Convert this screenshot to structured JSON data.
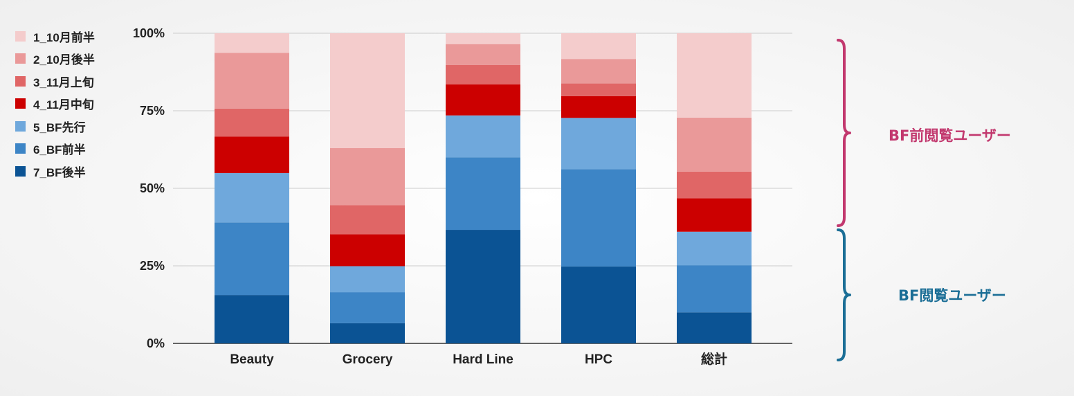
{
  "chart_data": {
    "type": "bar",
    "stacked": true,
    "normalized": true,
    "categories": [
      "Beauty",
      "Grocery",
      "Hard Line",
      "HPC",
      "総計"
    ],
    "series": [
      {
        "name": "7_BF後半",
        "color": "#0b5394",
        "values": [
          15.6,
          6.5,
          36.6,
          24.8,
          10.0
        ]
      },
      {
        "name": "6_BF前半",
        "color": "#3d85c6",
        "values": [
          23.4,
          10.0,
          23.4,
          31.4,
          15.2
        ]
      },
      {
        "name": "5_BF先行",
        "color": "#6fa8dc",
        "values": [
          15.9,
          8.4,
          13.5,
          16.5,
          10.8
        ]
      },
      {
        "name": "4_11月中旬",
        "color": "#cc0000",
        "values": [
          11.8,
          10.3,
          10.0,
          7.0,
          10.8
        ]
      },
      {
        "name": "3_11月上旬",
        "color": "#e06666",
        "values": [
          9.0,
          9.4,
          6.3,
          4.1,
          8.6
        ]
      },
      {
        "name": "2_10月後半",
        "color": "#ea9999",
        "values": [
          18.0,
          18.4,
          6.7,
          7.9,
          17.4
        ]
      },
      {
        "name": "1_10月前半",
        "color": "#f4cccc",
        "values": [
          6.3,
          37.0,
          3.5,
          8.3,
          27.2
        ]
      }
    ],
    "legend_order": [
      "1_10月前半",
      "2_10月後半",
      "3_11月上旬",
      "4_11月中旬",
      "5_BF先行",
      "6_BF前半",
      "7_BF後半"
    ],
    "legend_position": "left",
    "yticks": [
      "0%",
      "25%",
      "50%",
      "75%",
      "100%"
    ],
    "ylim": [
      0,
      100
    ],
    "grid": true,
    "title": "",
    "xlabel": "",
    "ylabel": ""
  },
  "annotations": {
    "upper": {
      "label": "BF前閲覧ユーザー",
      "color": "#c2386e",
      "range": [
        36,
        100
      ]
    },
    "lower": {
      "label": "BF閲覧ユーザー",
      "color": "#1b6e96",
      "range": [
        0,
        36
      ]
    }
  }
}
